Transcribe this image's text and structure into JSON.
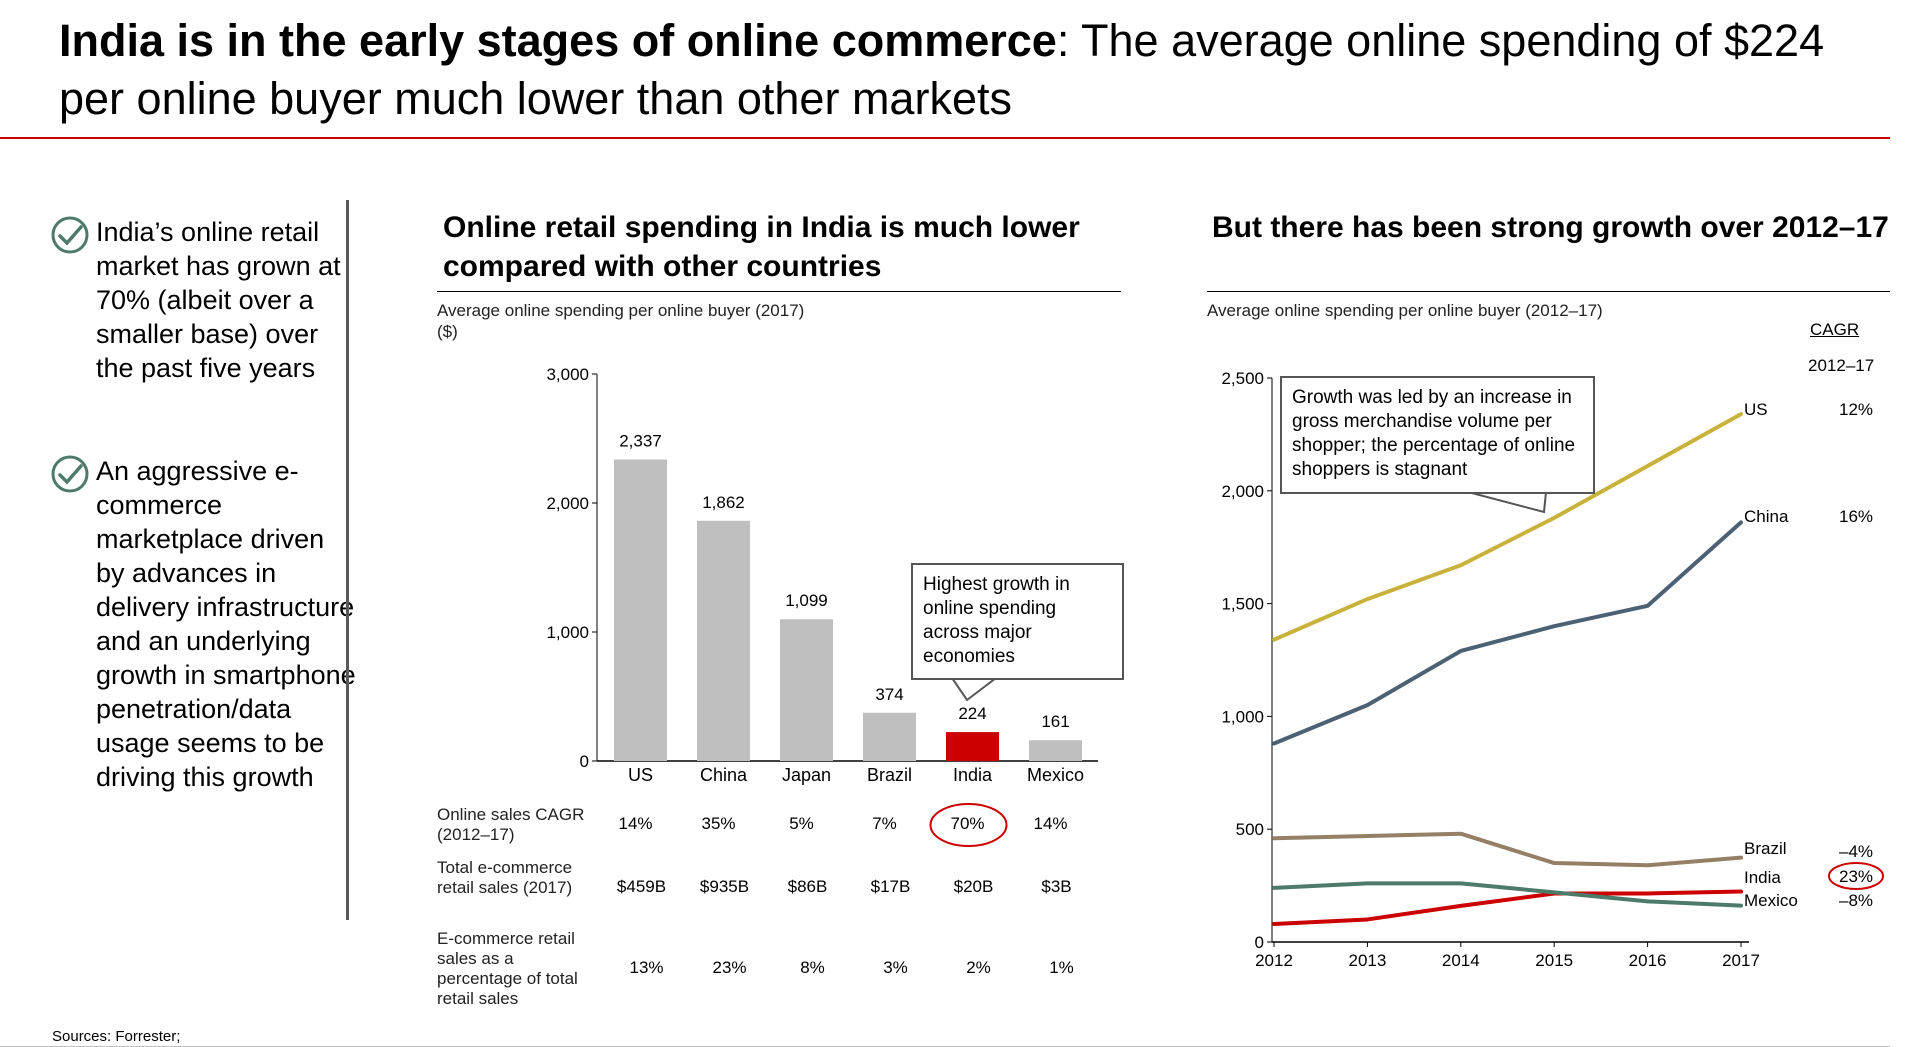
{
  "title": {
    "bold": "India is in the early stages of online commerce",
    "rest": ": The average online spending of $224 per online buyer much lower than other markets"
  },
  "bullets": [
    {
      "text": "India’s online retail market has grown at 70% (albeit over a smaller base) over the past five years"
    },
    {
      "text": "An aggressive e-commerce marketplace driven by advances in delivery infrastructure and an underlying growth in smartphone penetration/data usage seems to be driving this growth"
    }
  ],
  "bar_panel": {
    "title": "Online retail spending in India is much lower compared with other countries",
    "subtitle": "Average online spending per online buyer (2017)\n($)",
    "callout": "Highest growth in online spending across major economies",
    "table": {
      "rows": [
        {
          "label": "Online sales CAGR (2012–17)",
          "values": [
            "14%",
            "35%",
            "5%",
            "7%",
            "70%",
            "14%"
          ]
        },
        {
          "label": "Total e-commerce retail sales (2017)",
          "values": [
            "$459B",
            "$935B",
            "$86B",
            "$17B",
            "$20B",
            "$3B"
          ]
        },
        {
          "label": "E-commerce retail sales as a percentage of total retail sales",
          "values": [
            "13%",
            "23%",
            "8%",
            "3%",
            "2%",
            "1%"
          ]
        }
      ]
    }
  },
  "line_panel": {
    "title": "But there has been strong growth over 2012–17",
    "subtitle": "Average online spending per online buyer (2012–17)",
    "callout": "Growth was led by an increase in gross merchandise volume per shopper; the percentage of online shoppers is stagnant",
    "cagr_header": "CAGR",
    "cagr_period": "2012–17"
  },
  "chart_data": [
    {
      "type": "bar",
      "title": "Online retail spending in India is much lower compared with other countries",
      "ylabel": "Average online spending per online buyer (2017) ($)",
      "categories": [
        "US",
        "China",
        "Japan",
        "Brazil",
        "India",
        "Mexico"
      ],
      "values": [
        2337,
        1862,
        1099,
        374,
        224,
        161
      ],
      "labels": [
        "2,337",
        "1,862",
        "1,099",
        "374",
        "224",
        "161"
      ],
      "highlight": "India",
      "ylim": [
        0,
        3000
      ],
      "yticks": [
        0,
        1000,
        2000,
        3000
      ],
      "ytick_labels": [
        "0",
        "1,000",
        "2,000",
        "3,000"
      ],
      "colors": {
        "default": "#bfbfbf",
        "highlight": "#cc0000"
      }
    },
    {
      "type": "line",
      "title": "But there has been strong growth over 2012–17",
      "ylabel": "Average online spending per online buyer (2012–17)",
      "x": [
        "2012",
        "2013",
        "2014",
        "2015",
        "2016",
        "2017"
      ],
      "ylim": [
        0,
        2500
      ],
      "yticks": [
        0,
        500,
        1000,
        1500,
        2000,
        2500
      ],
      "ytick_labels": [
        "0",
        "500",
        "1,000",
        "1,500",
        "2,000",
        "2,500"
      ],
      "series": [
        {
          "name": "US",
          "values": [
            1340,
            1520,
            1670,
            1880,
            2110,
            2340
          ],
          "cagr": "12%",
          "color": "#c8b23c"
        },
        {
          "name": "China",
          "values": [
            880,
            1050,
            1290,
            1400,
            1490,
            1860
          ],
          "cagr": "16%",
          "color": "#4d6174"
        },
        {
          "name": "Brazil",
          "values": [
            460,
            470,
            480,
            350,
            340,
            374
          ],
          "cagr": "–4%",
          "color": "#958066"
        },
        {
          "name": "India",
          "values": [
            80,
            100,
            160,
            215,
            215,
            224
          ],
          "cagr": "23%",
          "color": "#cc0000"
        },
        {
          "name": "Mexico",
          "values": [
            240,
            260,
            260,
            220,
            180,
            161
          ],
          "cagr": "–8%",
          "color": "#4e7a6a"
        }
      ]
    }
  ],
  "source": "Sources: Forrester;"
}
